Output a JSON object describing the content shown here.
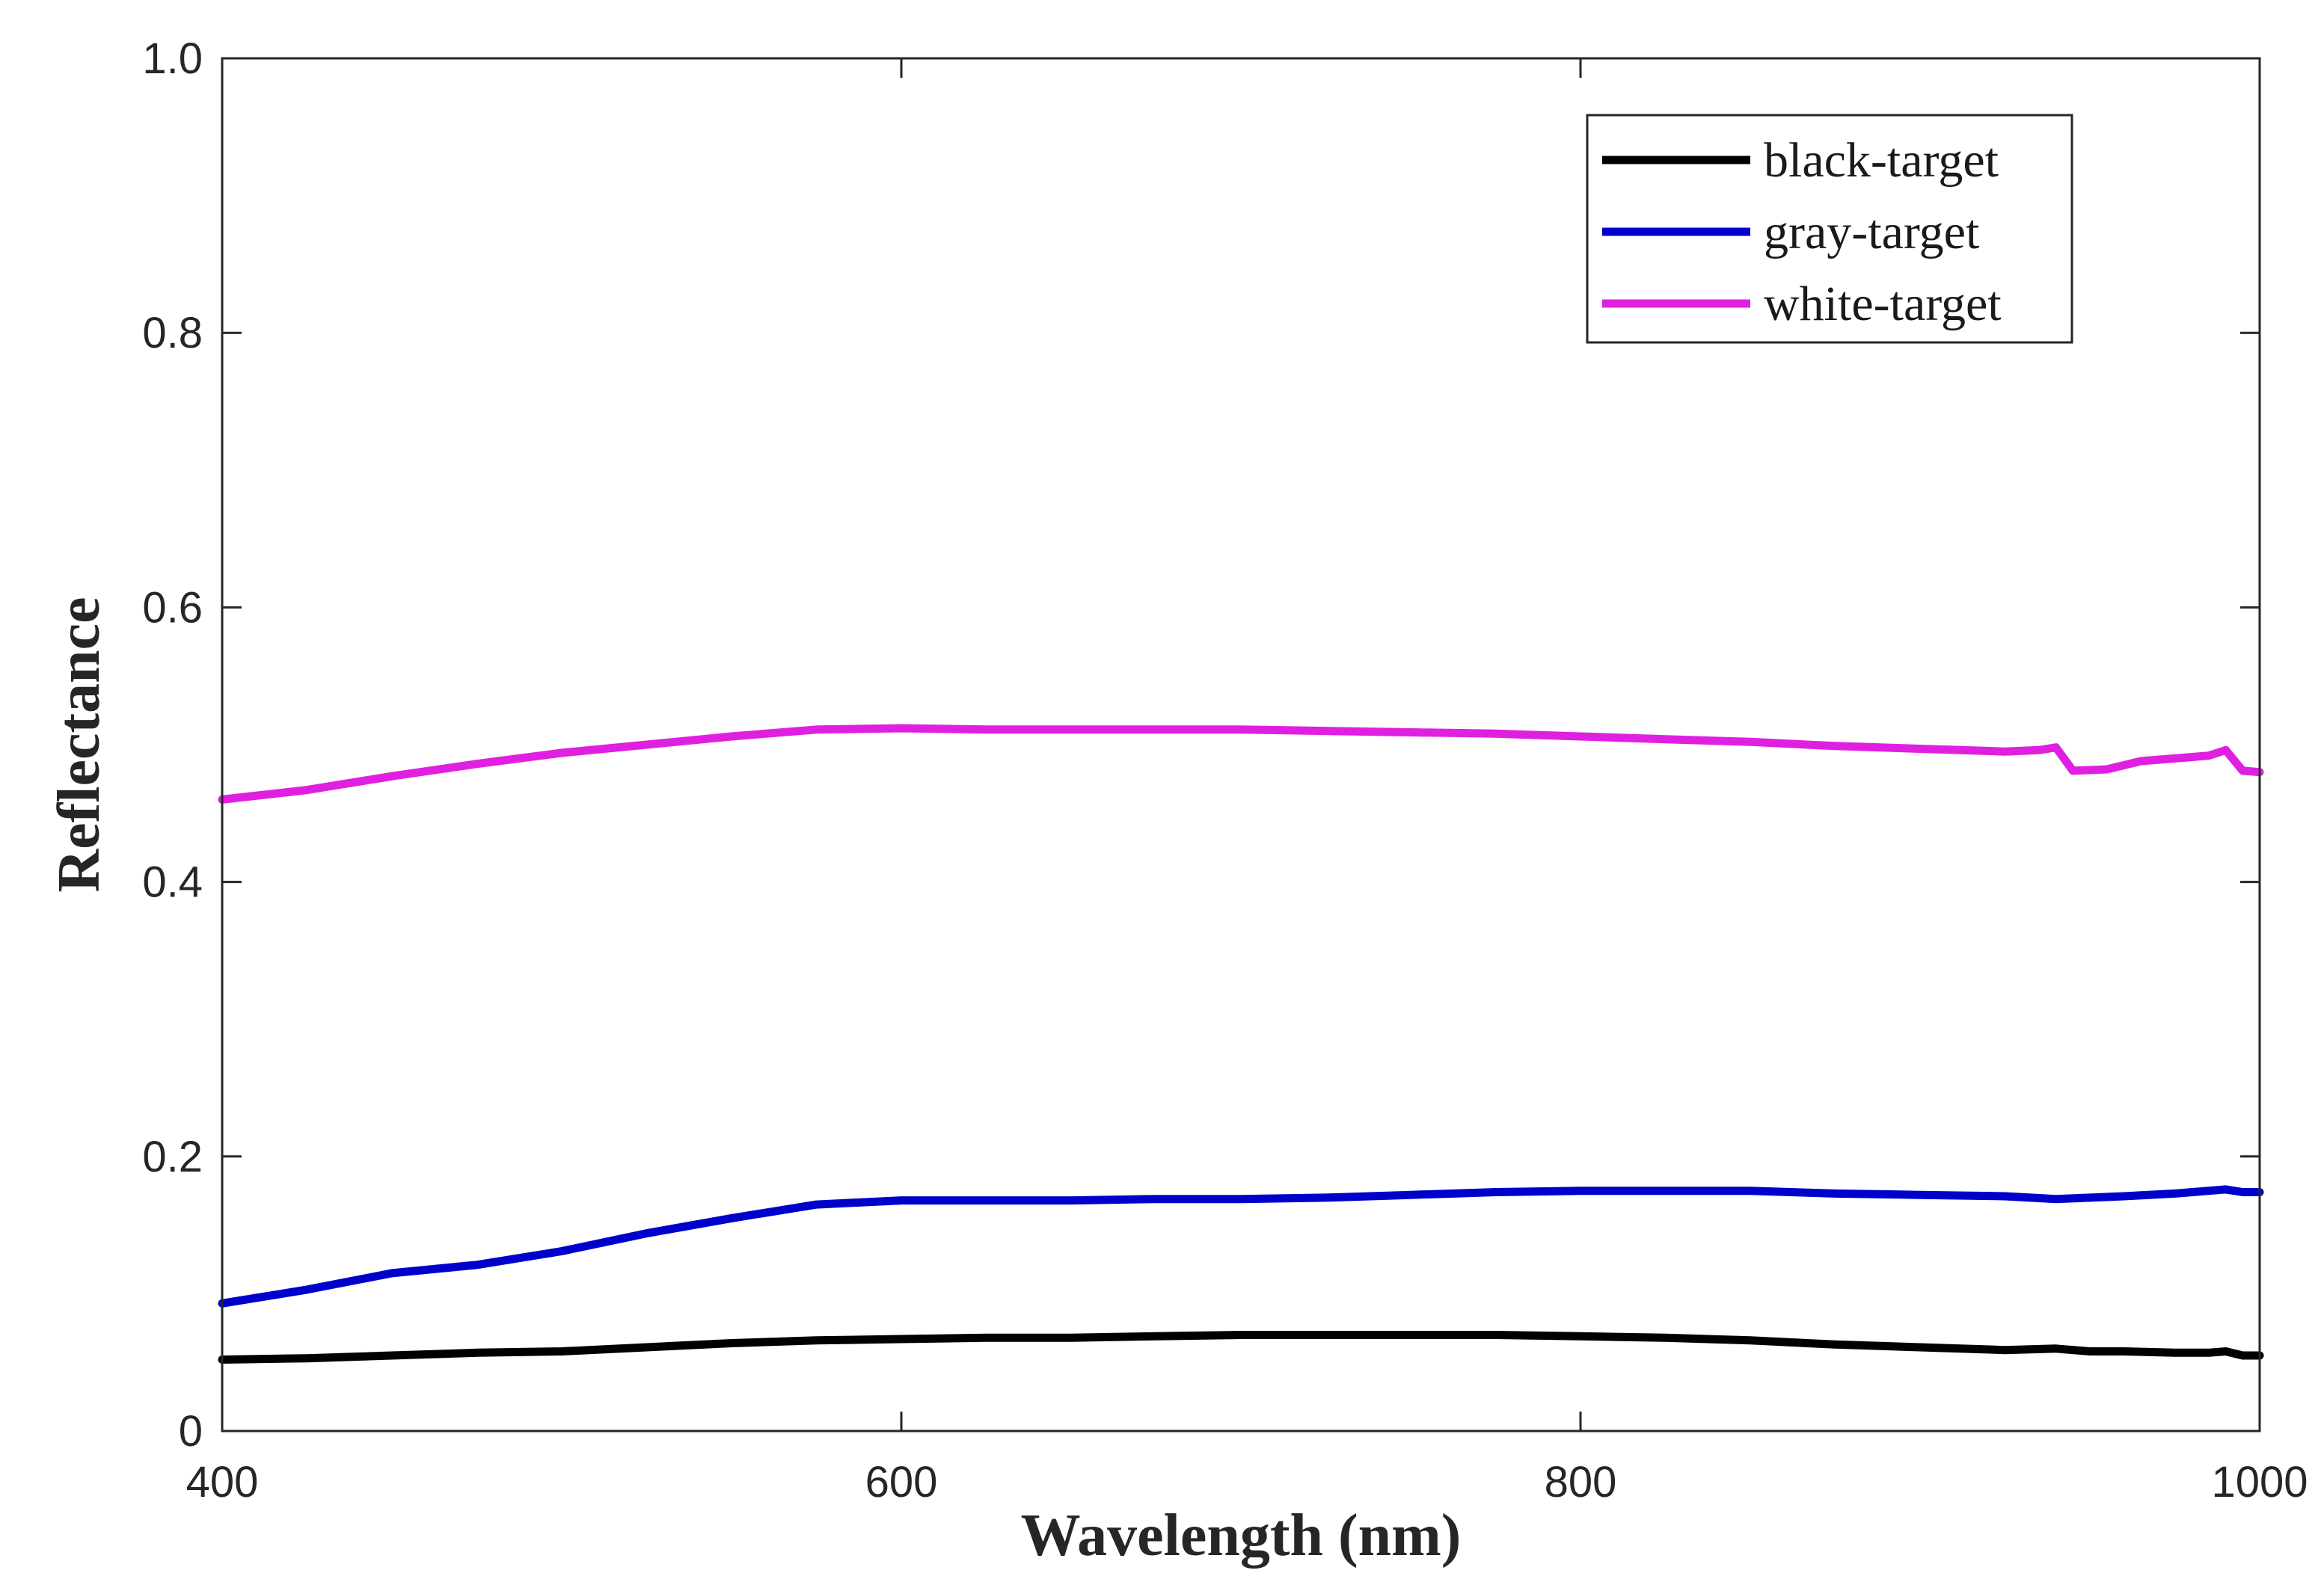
{
  "chart_data": {
    "type": "line",
    "title": "",
    "xlabel": "Wavelength (nm)",
    "ylabel": "Reflectance",
    "xlim": [
      400,
      1000
    ],
    "ylim": [
      0,
      1.0
    ],
    "xticks": [
      400,
      600,
      800,
      1000
    ],
    "xtick_labels": [
      "400",
      "600",
      "800",
      "1000"
    ],
    "yticks": [
      0,
      0.2,
      0.4,
      0.6,
      0.8,
      1.0
    ],
    "ytick_labels": [
      "0",
      "0.2",
      "0.4",
      "0.6",
      "0.8",
      "1.0"
    ],
    "grid": false,
    "legend_position": "top-right",
    "series": [
      {
        "name": "black-target",
        "color": "#000000",
        "x": [
          400,
          425,
          450,
          475,
          500,
          525,
          550,
          575,
          600,
          625,
          650,
          675,
          700,
          725,
          750,
          775,
          800,
          825,
          850,
          875,
          900,
          925,
          940,
          950,
          960,
          975,
          985,
          990,
          995,
          1000
        ],
        "y": [
          0.052,
          0.053,
          0.055,
          0.057,
          0.058,
          0.061,
          0.064,
          0.066,
          0.067,
          0.068,
          0.068,
          0.069,
          0.07,
          0.07,
          0.07,
          0.07,
          0.069,
          0.068,
          0.066,
          0.063,
          0.061,
          0.059,
          0.06,
          0.058,
          0.058,
          0.057,
          0.057,
          0.058,
          0.055,
          0.055
        ]
      },
      {
        "name": "gray-target",
        "color": "#0000cc",
        "x": [
          400,
          425,
          450,
          475,
          500,
          525,
          550,
          575,
          600,
          625,
          650,
          675,
          700,
          725,
          750,
          775,
          800,
          825,
          850,
          875,
          900,
          925,
          940,
          950,
          960,
          975,
          985,
          990,
          995,
          1000
        ],
        "y": [
          0.093,
          0.103,
          0.115,
          0.121,
          0.131,
          0.144,
          0.155,
          0.165,
          0.168,
          0.168,
          0.168,
          0.169,
          0.169,
          0.17,
          0.172,
          0.174,
          0.175,
          0.175,
          0.175,
          0.173,
          0.172,
          0.171,
          0.169,
          0.17,
          0.171,
          0.173,
          0.175,
          0.176,
          0.174,
          0.174
        ]
      },
      {
        "name": "white-target",
        "color": "#e020e0",
        "x": [
          400,
          425,
          450,
          475,
          500,
          525,
          550,
          575,
          600,
          625,
          650,
          675,
          700,
          725,
          750,
          775,
          800,
          825,
          850,
          875,
          900,
          925,
          935,
          940,
          945,
          955,
          965,
          975,
          985,
          990,
          995,
          1000
        ],
        "y": [
          0.46,
          0.467,
          0.477,
          0.486,
          0.494,
          0.5,
          0.506,
          0.511,
          0.512,
          0.511,
          0.511,
          0.511,
          0.511,
          0.51,
          0.509,
          0.508,
          0.506,
          0.504,
          0.502,
          0.499,
          0.497,
          0.495,
          0.496,
          0.498,
          0.481,
          0.482,
          0.488,
          0.49,
          0.492,
          0.496,
          0.481,
          0.48
        ]
      }
    ]
  }
}
